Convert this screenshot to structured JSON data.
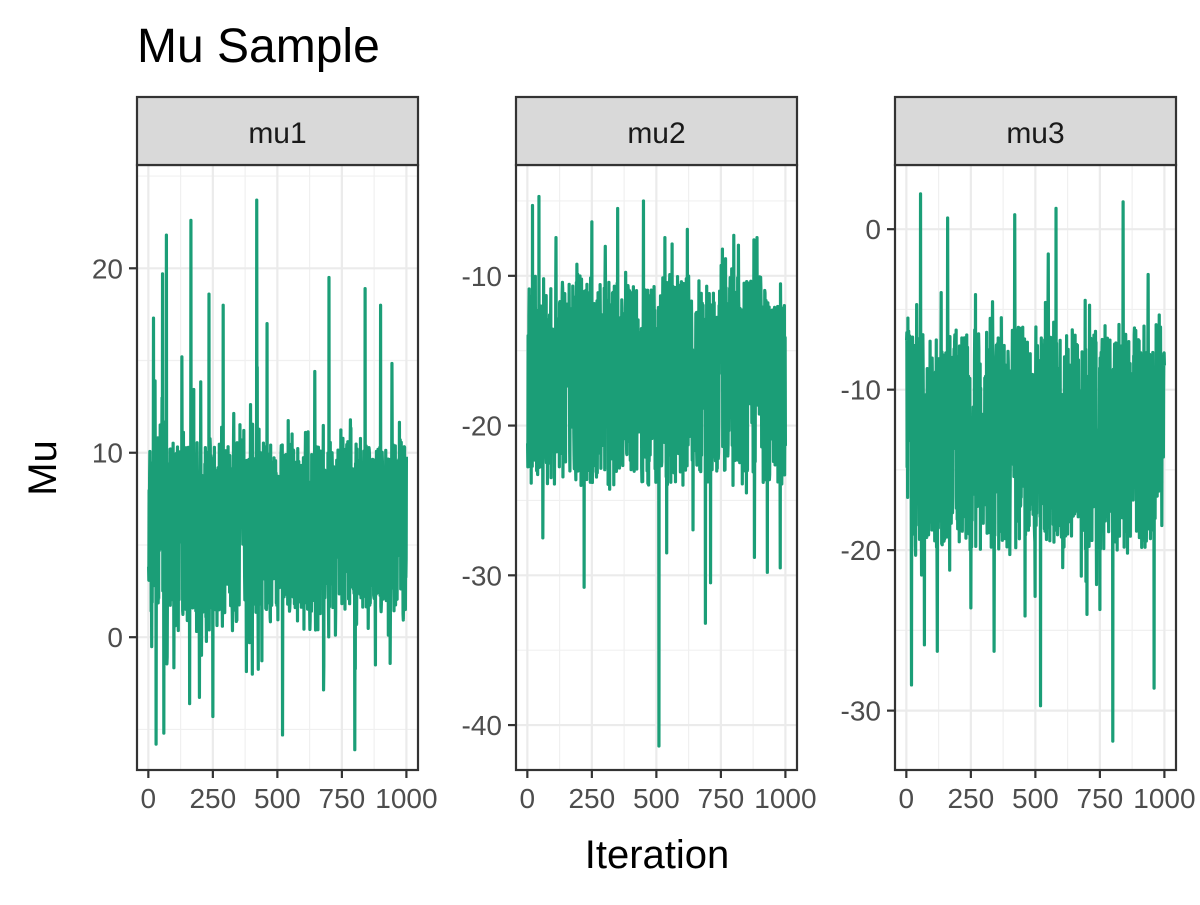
{
  "chart_data": {
    "type": "line",
    "title": "Mu Sample",
    "xlabel": "Iteration",
    "ylabel": "Mu",
    "grid": true,
    "legend": "none",
    "color": "#1B9E77",
    "x_range": [
      1,
      1000
    ],
    "x_ticks": [
      0,
      250,
      500,
      750,
      1000
    ],
    "x_tick_labels": [
      "0",
      "250",
      "500",
      "750",
      "1000"
    ],
    "panels": [
      {
        "strip_label": "mu1",
        "ylim": [
          -7.2,
          25.6
        ],
        "y_ticks": [
          0,
          10,
          20
        ],
        "y_tick_labels": [
          "0",
          "10",
          "20"
        ],
        "center": 5.8,
        "spread": 3.0,
        "q_low": 1.2,
        "q_high": 10.6,
        "extremes": [
          {
            "x": 20,
            "y": 17.3
          },
          {
            "x": 30,
            "y": -5.8
          },
          {
            "x": 55,
            "y": 19.7
          },
          {
            "x": 60,
            "y": -5.2
          },
          {
            "x": 70,
            "y": 21.8
          },
          {
            "x": 130,
            "y": 15.2
          },
          {
            "x": 160,
            "y": -3.6
          },
          {
            "x": 165,
            "y": 22.6
          },
          {
            "x": 235,
            "y": 18.6
          },
          {
            "x": 250,
            "y": -4.3
          },
          {
            "x": 290,
            "y": 18.0
          },
          {
            "x": 420,
            "y": 23.7
          },
          {
            "x": 460,
            "y": 17.0
          },
          {
            "x": 520,
            "y": -5.3
          },
          {
            "x": 700,
            "y": 19.5
          },
          {
            "x": 800,
            "y": -6.1
          },
          {
            "x": 840,
            "y": 18.9
          },
          {
            "x": 900,
            "y": 18.0
          },
          {
            "x": 880,
            "y": -1.5
          }
        ]
      },
      {
        "strip_label": "mu2",
        "ylim": [
          -43,
          -2.6
        ],
        "y_ticks": [
          -40,
          -30,
          -20,
          -10
        ],
        "y_tick_labels": [
          "-40",
          "-30",
          "-20",
          "-10"
        ],
        "center": -16.0,
        "spread": 3.2,
        "q_low": -24.0,
        "q_high": -10.0,
        "extremes": [
          {
            "x": 20,
            "y": -5.3
          },
          {
            "x": 45,
            "y": -4.7
          },
          {
            "x": 60,
            "y": -27.5
          },
          {
            "x": 220,
            "y": -30.8
          },
          {
            "x": 250,
            "y": -6.4
          },
          {
            "x": 350,
            "y": -5.5
          },
          {
            "x": 450,
            "y": -5.0
          },
          {
            "x": 510,
            "y": -41.4
          },
          {
            "x": 540,
            "y": -28.5
          },
          {
            "x": 620,
            "y": -6.9
          },
          {
            "x": 690,
            "y": -33.2
          },
          {
            "x": 710,
            "y": -30.5
          },
          {
            "x": 800,
            "y": -7.3
          },
          {
            "x": 880,
            "y": -28.8
          },
          {
            "x": 930,
            "y": -29.8
          },
          {
            "x": 980,
            "y": -29.5
          }
        ]
      },
      {
        "strip_label": "mu3",
        "ylim": [
          -33.7,
          4.0
        ],
        "y_ticks": [
          -30,
          -20,
          -10,
          0
        ],
        "y_tick_labels": [
          "-30",
          "-20",
          "-10",
          "0"
        ],
        "center": -13.0,
        "spread": 3.6,
        "q_low": -20.0,
        "q_high": -6.0,
        "extremes": [
          {
            "x": 20,
            "y": -28.4
          },
          {
            "x": 40,
            "y": -4.7
          },
          {
            "x": 55,
            "y": 2.2
          },
          {
            "x": 70,
            "y": -25.9
          },
          {
            "x": 120,
            "y": -26.3
          },
          {
            "x": 160,
            "y": 0.7
          },
          {
            "x": 250,
            "y": -23.6
          },
          {
            "x": 340,
            "y": -26.3
          },
          {
            "x": 420,
            "y": 0.9
          },
          {
            "x": 460,
            "y": -24.1
          },
          {
            "x": 520,
            "y": -29.7
          },
          {
            "x": 580,
            "y": 1.3
          },
          {
            "x": 700,
            "y": -24.0
          },
          {
            "x": 750,
            "y": -23.7
          },
          {
            "x": 800,
            "y": -31.9
          },
          {
            "x": 840,
            "y": 1.7
          },
          {
            "x": 960,
            "y": -28.6
          }
        ]
      }
    ]
  }
}
